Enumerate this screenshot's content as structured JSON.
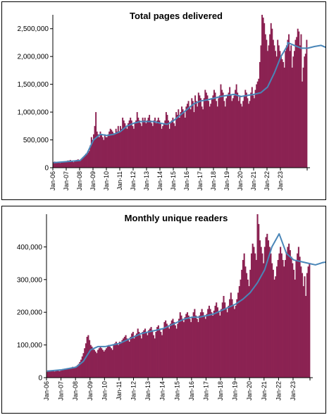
{
  "chart_data": [
    {
      "type": "bar",
      "title": "Total pages delivered",
      "bar_color": "#8b2252",
      "line_color": "#4a86b8",
      "ylim": [
        0,
        2750000
      ],
      "yticks": [
        0,
        500000,
        1000000,
        1500000,
        2000000,
        2500000
      ],
      "ytick_labels": [
        "0",
        "500,000",
        "1,000,000",
        "1,500,000",
        "2,000,000",
        "2,500,000"
      ],
      "xtick_labels": [
        "Jan-06",
        "Jan-07",
        "Jan-08",
        "Jan-09",
        "Jan-10",
        "Jan-11",
        "Jan-12",
        "Jan-13",
        "Jan-14",
        "Jan-15",
        "Jan-16",
        "Jan-17",
        "Jan-18",
        "Jan-19",
        "Jan-20",
        "Jan-21",
        "Jan-22",
        "Jan-23"
      ],
      "start": "Jan-06",
      "series": [
        {
          "type": "bar",
          "values": [
            100000,
            110000,
            90000,
            105000,
            95000,
            100000,
            85000,
            90000,
            110000,
            105000,
            95000,
            100000,
            120000,
            130000,
            115000,
            140000,
            125000,
            110000,
            100000,
            130000,
            135000,
            140000,
            150000,
            120000,
            130000,
            160000,
            180000,
            200000,
            220000,
            250000,
            240000,
            270000,
            300000,
            400000,
            550000,
            500000,
            600000,
            750000,
            1000000,
            650000,
            600000,
            550000,
            650000,
            600000,
            550000,
            500000,
            600000,
            550000,
            550000,
            600000,
            650000,
            700000,
            680000,
            650000,
            620000,
            600000,
            700000,
            650000,
            750000,
            650000,
            750000,
            700000,
            900000,
            850000,
            800000,
            750000,
            700000,
            800000,
            850000,
            900000,
            850000,
            750000,
            700000,
            800000,
            850000,
            1000000,
            900000,
            850000,
            800000,
            750000,
            900000,
            850000,
            900000,
            800000,
            850000,
            900000,
            950000,
            850000,
            800000,
            750000,
            850000,
            900000,
            800000,
            850000,
            900000,
            850000,
            800000,
            700000,
            750000,
            800000,
            850000,
            1000000,
            950000,
            850000,
            700000,
            800000,
            850000,
            900000,
            800000,
            750000,
            1000000,
            950000,
            1050000,
            900000,
            1000000,
            1100000,
            1050000,
            1000000,
            900000,
            1100000,
            1150000,
            1200000,
            1100000,
            1050000,
            1250000,
            1200000,
            1000000,
            1300000,
            1200000,
            1100000,
            1350000,
            1300000,
            1250000,
            1100000,
            1050000,
            1250000,
            1400000,
            1350000,
            1300000,
            1200000,
            1100000,
            1150000,
            1250000,
            1300000,
            1400000,
            1350000,
            1200000,
            1100000,
            1250000,
            1300000,
            1500000,
            1400000,
            1350000,
            1200000,
            1100000,
            1250000,
            1300000,
            1350000,
            1450000,
            1300000,
            1200000,
            1250000,
            1300000,
            1400000,
            1500000,
            1350000,
            1200000,
            1300000,
            1150000,
            1100000,
            1200000,
            1300000,
            1400000,
            1350000,
            1250000,
            1150000,
            1200000,
            1350000,
            1450000,
            1300000,
            1250000,
            1400000,
            1500000,
            1550000,
            1600000,
            1900000,
            2200000,
            2750000,
            2700000,
            2600000,
            2400000,
            2300000,
            2100000,
            2200000,
            2400000,
            2600000,
            2500000,
            2300000,
            2200000,
            2100000,
            2000000,
            2300000,
            2200000,
            2100000,
            2000000,
            1950000,
            1900000,
            1800000,
            2100000,
            2200000,
            2300000,
            2400000,
            2100000,
            2200000,
            1800000,
            2000000,
            2100000,
            2300000,
            2350000,
            2500000,
            2450000,
            2200000,
            2400000,
            1550000,
            1800000,
            2000000,
            2050000,
            2300000
          ]
        },
        {
          "type": "line",
          "x": [
            0,
            12,
            24,
            30,
            36,
            42,
            48,
            54,
            60,
            66,
            72,
            78,
            84,
            90,
            96,
            102,
            108,
            114,
            120,
            126,
            132,
            138,
            144,
            150,
            156,
            162,
            168,
            174,
            180,
            186,
            192,
            198,
            204,
            210,
            216,
            222,
            228,
            234,
            240,
            246,
            210
          ],
          "values": [
            90000,
            110000,
            130000,
            250000,
            500000,
            600000,
            580000,
            600000,
            650000,
            750000,
            800000,
            830000,
            830000,
            830000,
            800000,
            780000,
            850000,
            950000,
            1050000,
            1150000,
            1200000,
            1220000,
            1250000,
            1280000,
            1300000,
            1320000,
            1280000,
            1300000,
            1320000,
            1350000,
            1450000,
            1700000,
            2000000,
            2200000,
            2200000,
            2150000,
            2150000,
            2180000,
            2200000,
            2150000,
            2250000
          ]
        }
      ]
    },
    {
      "type": "bar",
      "title": "Monthly unique readers",
      "bar_color": "#8b2252",
      "line_color": "#4a86b8",
      "ylim": [
        0,
        500000
      ],
      "yticks": [
        0,
        100000,
        200000,
        300000,
        400000
      ],
      "ytick_labels": [
        "0",
        "100,000",
        "200,000",
        "300,000",
        "400,000"
      ],
      "xtick_labels": [
        "Jan-06",
        "Jan-07",
        "Jan-08",
        "Jan-09",
        "Jan-10",
        "Jan-11",
        "Jan-12",
        "Jan-13",
        "Jan-14",
        "Jan-15",
        "Jan-16",
        "Jan-17",
        "Jan-18",
        "Jan-19",
        "Jan-20",
        "Jan-21",
        "Jan-22",
        "Jan-23"
      ],
      "start": "Jan-06",
      "series": [
        {
          "type": "bar",
          "values": [
            18000,
            20000,
            19000,
            21000,
            20000,
            22000,
            19000,
            20000,
            21000,
            22000,
            20000,
            21000,
            25000,
            26000,
            25000,
            28000,
            27000,
            26000,
            28000,
            30000,
            31000,
            33000,
            32000,
            30000,
            35000,
            38000,
            42000,
            48000,
            55000,
            65000,
            75000,
            90000,
            105000,
            125000,
            130000,
            115000,
            100000,
            95000,
            90000,
            85000,
            80000,
            75000,
            85000,
            90000,
            95000,
            90000,
            85000,
            80000,
            85000,
            90000,
            95000,
            100000,
            95000,
            90000,
            85000,
            100000,
            105000,
            110000,
            105000,
            100000,
            110000,
            105000,
            115000,
            120000,
            125000,
            130000,
            120000,
            115000,
            110000,
            125000,
            135000,
            140000,
            120000,
            130000,
            135000,
            150000,
            140000,
            130000,
            120000,
            140000,
            145000,
            150000,
            140000,
            130000,
            145000,
            150000,
            155000,
            145000,
            130000,
            120000,
            140000,
            155000,
            160000,
            150000,
            140000,
            130000,
            150000,
            170000,
            175000,
            165000,
            160000,
            150000,
            165000,
            175000,
            180000,
            170000,
            160000,
            150000,
            165000,
            180000,
            200000,
            190000,
            180000,
            170000,
            185000,
            195000,
            200000,
            190000,
            180000,
            170000,
            185000,
            200000,
            210000,
            190000,
            180000,
            170000,
            190000,
            200000,
            210000,
            200000,
            190000,
            180000,
            195000,
            210000,
            220000,
            210000,
            200000,
            190000,
            205000,
            220000,
            230000,
            215000,
            200000,
            190000,
            210000,
            230000,
            250000,
            230000,
            210000,
            200000,
            220000,
            240000,
            260000,
            240000,
            220000,
            210000,
            220000,
            240000,
            260000,
            280000,
            300000,
            330000,
            360000,
            380000,
            340000,
            320000,
            300000,
            280000,
            330000,
            380000,
            410000,
            400000,
            380000,
            360000,
            500000,
            470000,
            420000,
            400000,
            380000,
            350000,
            400000,
            430000,
            440000,
            420000,
            400000,
            380000,
            350000,
            330000,
            300000,
            310000,
            340000,
            360000,
            380000,
            400000,
            380000,
            360000,
            340000,
            360000,
            380000,
            400000,
            410000,
            390000,
            370000,
            350000,
            330000,
            300000,
            360000,
            380000,
            400000,
            370000,
            340000,
            320000,
            280000,
            310000,
            250000,
            320000,
            340000,
            350000
          ]
        },
        {
          "type": "line",
          "x": [
            0,
            12,
            24,
            30,
            36,
            42,
            48,
            54,
            60,
            66,
            72,
            78,
            84,
            90,
            96,
            102,
            108,
            114,
            120,
            126,
            132,
            138,
            144,
            150,
            156,
            162,
            168,
            174,
            180,
            186,
            192,
            198,
            204,
            210,
            216,
            222,
            228,
            234,
            240,
            246
          ],
          "values": [
            20000,
            24000,
            32000,
            50000,
            85000,
            95000,
            95000,
            100000,
            105000,
            115000,
            125000,
            135000,
            140000,
            145000,
            150000,
            160000,
            170000,
            180000,
            185000,
            185000,
            190000,
            195000,
            205000,
            215000,
            225000,
            240000,
            260000,
            290000,
            330000,
            400000,
            440000,
            380000,
            360000,
            355000,
            350000,
            345000,
            352000,
            355000,
            352000,
            350000
          ]
        }
      ]
    }
  ]
}
